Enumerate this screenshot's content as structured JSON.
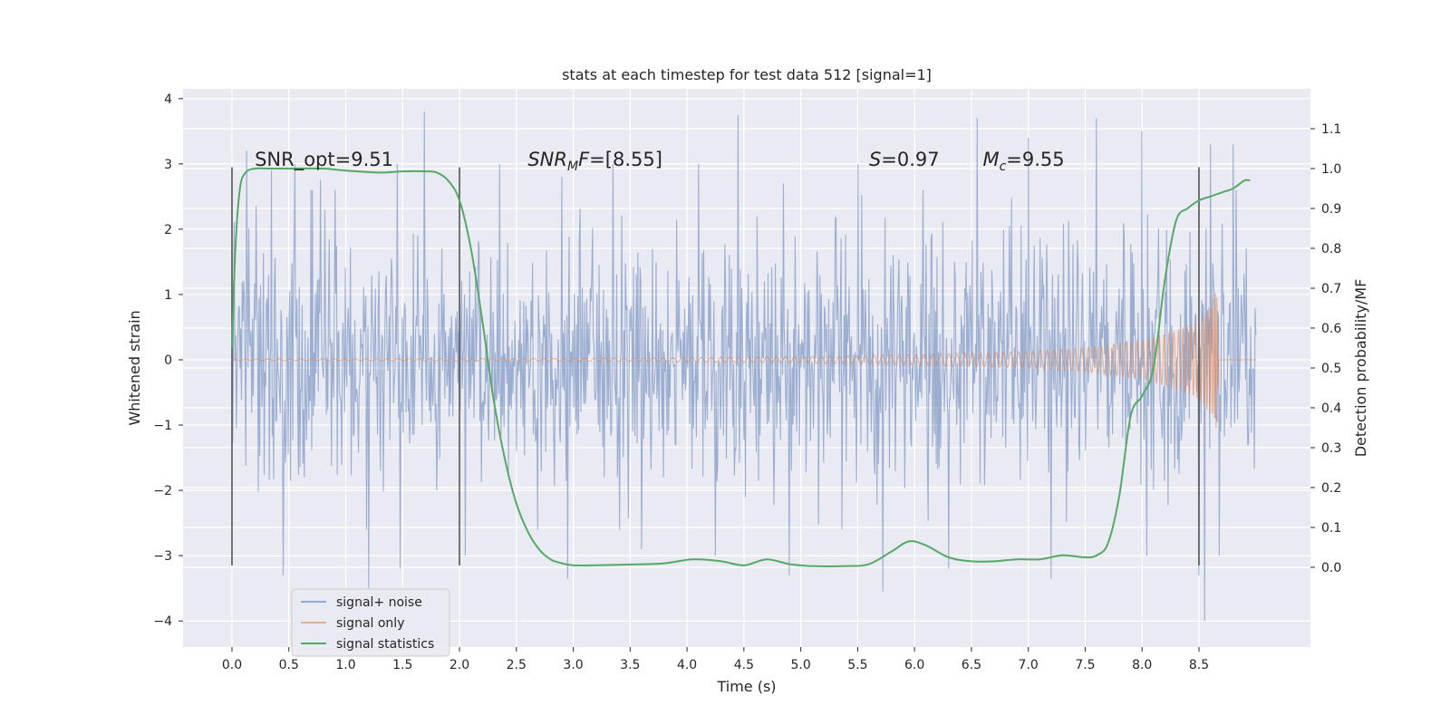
{
  "chart_data": {
    "type": "line",
    "title": "stats at each timestep for test data 512 [signal=1]",
    "xlabel": "Time (s)",
    "ylabel_left": "Whitened strain",
    "ylabel_right": "Detection probability/MF",
    "xlim": [
      -0.43,
      9.48
    ],
    "ylim_left": [
      -4.4,
      4.15
    ],
    "ylim_right": [
      -0.2,
      1.2
    ],
    "x_ticks": [
      0.0,
      0.5,
      1.0,
      1.5,
      2.0,
      2.5,
      3.0,
      3.5,
      4.0,
      4.5,
      5.0,
      5.5,
      6.0,
      6.5,
      7.0,
      7.5,
      8.0,
      8.5
    ],
    "x_tick_labels": [
      "0.0",
      "0.5",
      "1.0",
      "1.5",
      "2.0",
      "2.5",
      "3.0",
      "3.5",
      "4.0",
      "4.5",
      "5.0",
      "5.5",
      "6.0",
      "6.5",
      "7.0",
      "7.5",
      "8.0",
      "8.5"
    ],
    "y_left_ticks": [
      4,
      3,
      2,
      1,
      0,
      -1,
      -2,
      -3,
      -4
    ],
    "y_left_tick_labels": [
      "4",
      "3",
      "2",
      "1",
      "0",
      "−1",
      "−2",
      "−3",
      "−4"
    ],
    "y_right_ticks": [
      1.1,
      1.0,
      0.9,
      0.8,
      0.7,
      0.6,
      0.5,
      0.4,
      0.3,
      0.2,
      0.1,
      0.0
    ],
    "y_right_tick_labels": [
      "1.1",
      "1.0",
      "0.9",
      "0.8",
      "0.7",
      "0.6",
      "0.5",
      "0.4",
      "0.3",
      "0.2",
      "0.1",
      "0.0"
    ],
    "annotations": [
      {
        "x": 0.2,
        "y": 3.0,
        "prefix": "SNR_opt=9.51",
        "sub": "",
        "suffix": "",
        "italic_prefix": false
      },
      {
        "x": 2.6,
        "y": 3.0,
        "prefix": "SNR",
        "sub": "M",
        "suffix": "F=[8.55]",
        "italic_prefix": true
      },
      {
        "x": 5.6,
        "y": 3.0,
        "prefix": "S",
        "sub": "",
        "suffix": "=0.97",
        "italic_prefix": true
      },
      {
        "x": 6.6,
        "y": 3.0,
        "prefix": "M",
        "sub": "c",
        "suffix": "=9.55",
        "italic_prefix": true
      }
    ],
    "vlines": [
      {
        "x": 0.0,
        "y0": -3.15,
        "y1": 2.95
      },
      {
        "x": 2.0,
        "y0": -3.15,
        "y1": 2.95
      },
      {
        "x": 8.5,
        "y0": -3.15,
        "y1": 2.95
      }
    ],
    "series": [
      {
        "name": "signal+ noise",
        "color": "#4c72b0",
        "alpha": 0.5,
        "x_range": [
          0.0,
          9.0
        ],
        "envelope_abs_max": 1.5,
        "peaks": [
          {
            "x": 0.13,
            "y": 3.2
          },
          {
            "x": 0.35,
            "y": 2.9
          },
          {
            "x": 0.55,
            "y": 3.0
          },
          {
            "x": 0.78,
            "y": 2.75
          },
          {
            "x": 1.2,
            "y": 2.8
          },
          {
            "x": 1.45,
            "y": 3.0
          },
          {
            "x": 1.69,
            "y": 3.8
          },
          {
            "x": 2.35,
            "y": 3.0
          },
          {
            "x": 2.9,
            "y": 2.8
          },
          {
            "x": 3.35,
            "y": 3.0
          },
          {
            "x": 4.1,
            "y": 3.0
          },
          {
            "x": 4.45,
            "y": 3.75
          },
          {
            "x": 4.85,
            "y": 2.7
          },
          {
            "x": 5.5,
            "y": 3.0
          },
          {
            "x": 6.55,
            "y": 3.7
          },
          {
            "x": 7.0,
            "y": 3.4
          },
          {
            "x": 7.6,
            "y": 3.7
          },
          {
            "x": 8.0,
            "y": 3.5
          },
          {
            "x": 8.6,
            "y": 3.3
          },
          {
            "x": 8.8,
            "y": 3.3
          },
          {
            "x": 0.45,
            "y": -3.3
          },
          {
            "x": 1.2,
            "y": -3.5
          },
          {
            "x": 1.48,
            "y": -3.2
          },
          {
            "x": 2.05,
            "y": -3.0
          },
          {
            "x": 2.95,
            "y": -3.35
          },
          {
            "x": 3.6,
            "y": -2.9
          },
          {
            "x": 4.25,
            "y": -3.0
          },
          {
            "x": 4.9,
            "y": -3.3
          },
          {
            "x": 5.72,
            "y": -3.55
          },
          {
            "x": 6.3,
            "y": -3.2
          },
          {
            "x": 7.2,
            "y": -3.35
          },
          {
            "x": 8.04,
            "y": -3.0
          },
          {
            "x": 8.5,
            "y": -3.3
          },
          {
            "x": 8.55,
            "y": -4.0
          },
          {
            "x": 8.68,
            "y": -3.0
          }
        ]
      },
      {
        "name": "signal only",
        "color": "#dd8452",
        "alpha": 0.6,
        "x_range": [
          0.0,
          9.0
        ],
        "amplitude_profile": [
          {
            "x": 0.0,
            "amp": 0.01
          },
          {
            "x": 3.0,
            "amp": 0.02
          },
          {
            "x": 5.0,
            "amp": 0.05
          },
          {
            "x": 6.0,
            "amp": 0.08
          },
          {
            "x": 7.0,
            "amp": 0.13
          },
          {
            "x": 7.5,
            "amp": 0.18
          },
          {
            "x": 8.0,
            "amp": 0.3
          },
          {
            "x": 8.3,
            "amp": 0.45
          },
          {
            "x": 8.5,
            "amp": 0.6
          },
          {
            "x": 8.6,
            "amp": 0.85
          },
          {
            "x": 8.66,
            "amp": 1.1
          },
          {
            "x": 8.67,
            "amp": 0.0
          },
          {
            "x": 9.0,
            "amp": 0.0
          }
        ],
        "merger_x": 8.66
      },
      {
        "name": "signal statistics",
        "color": "#55a868",
        "axis": "right",
        "x": [
          0.0,
          0.03,
          0.07,
          0.12,
          0.2,
          0.3,
          0.5,
          0.8,
          1.0,
          1.3,
          1.5,
          1.7,
          1.8,
          1.9,
          2.0,
          2.1,
          2.2,
          2.3,
          2.4,
          2.5,
          2.6,
          2.7,
          2.8,
          2.9,
          3.0,
          3.2,
          3.5,
          3.8,
          4.05,
          4.3,
          4.5,
          4.7,
          4.9,
          5.1,
          5.4,
          5.6,
          5.8,
          5.95,
          6.1,
          6.3,
          6.5,
          6.7,
          6.9,
          7.1,
          7.3,
          7.5,
          7.6,
          7.7,
          7.8,
          7.9,
          8.0,
          8.1,
          8.2,
          8.3,
          8.4,
          8.5,
          8.6,
          8.7,
          8.8,
          8.9,
          8.95
        ],
        "y": [
          0.55,
          0.8,
          0.95,
          0.99,
          1.0,
          1.0,
          1.0,
          1.0,
          0.995,
          0.99,
          0.993,
          0.993,
          0.99,
          0.97,
          0.92,
          0.8,
          0.62,
          0.42,
          0.27,
          0.16,
          0.09,
          0.045,
          0.02,
          0.01,
          0.005,
          0.005,
          0.007,
          0.01,
          0.02,
          0.015,
          0.005,
          0.02,
          0.008,
          0.003,
          0.003,
          0.008,
          0.04,
          0.065,
          0.055,
          0.025,
          0.015,
          0.015,
          0.02,
          0.02,
          0.03,
          0.025,
          0.03,
          0.06,
          0.18,
          0.38,
          0.43,
          0.5,
          0.72,
          0.87,
          0.9,
          0.92,
          0.93,
          0.94,
          0.95,
          0.97,
          0.97
        ]
      }
    ],
    "legend": {
      "placement": "lower-left",
      "entries": [
        "signal+ noise",
        "signal only",
        "signal statistics"
      ]
    },
    "grid": true
  }
}
